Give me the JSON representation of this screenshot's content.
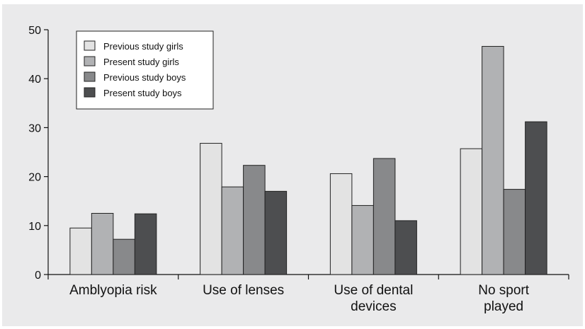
{
  "chart_data": {
    "type": "bar",
    "categories": [
      "Amblyopia risk",
      "Use of lenses",
      "Use of dental devices",
      "No sport played"
    ],
    "category_lines": [
      [
        "Amblyopia risk"
      ],
      [
        "Use of lenses"
      ],
      [
        "Use of dental",
        "devices"
      ],
      [
        "No sport",
        "played"
      ]
    ],
    "series": [
      {
        "name": "Previous study girls",
        "values": [
          9.5,
          26.8,
          20.6,
          25.7
        ],
        "color": "#e3e3e3"
      },
      {
        "name": "Present study girls",
        "values": [
          12.5,
          17.9,
          14.1,
          46.6
        ],
        "color": "#b1b2b4"
      },
      {
        "name": "Previous study boys",
        "values": [
          7.2,
          22.3,
          23.7,
          17.4
        ],
        "color": "#88898b"
      },
      {
        "name": "Present study boys",
        "values": [
          12.4,
          17.0,
          11.0,
          31.2
        ],
        "color": "#4d4e50"
      }
    ],
    "yticks": [
      0,
      10,
      20,
      30,
      40,
      50
    ],
    "ylim": [
      0,
      50
    ],
    "xlabel": "",
    "ylabel": "",
    "title": "",
    "grid": false,
    "legend_position": "top-left"
  }
}
